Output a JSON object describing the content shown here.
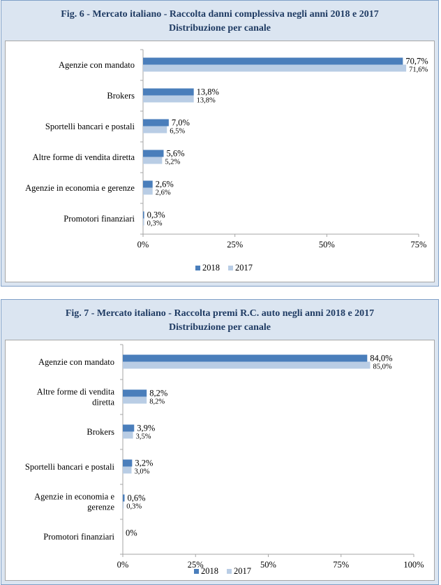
{
  "chart_data": [
    {
      "type": "bar",
      "orientation": "horizontal",
      "title": "Fig. 6 - Mercato italiano - Raccolta danni complessiva negli anni 2018 e 2017",
      "subtitle": "Distribuzione per canale",
      "categories": [
        "Agenzie con mandato",
        "Brokers",
        "Sportelli bancari e postali",
        "Altre forme di vendita diretta",
        "Agenzie in economia e gerenze",
        "Promotori finanziari"
      ],
      "series": [
        {
          "name": "2018",
          "color": "#4a7ebb",
          "values": [
            70.7,
            13.8,
            7.0,
            5.6,
            2.6,
            0.3
          ],
          "labels": [
            "70,7%",
            "13,8%",
            "7,0%",
            "5,6%",
            "2,6%",
            "0,3%"
          ]
        },
        {
          "name": "2017",
          "color": "#b9cde5",
          "values": [
            71.6,
            13.8,
            6.5,
            5.2,
            2.6,
            0.3
          ],
          "labels": [
            "71,6%",
            "13,8%",
            "6,5%",
            "5,2%",
            "2,6%",
            "0,3%"
          ]
        }
      ],
      "xlim": [
        0,
        75
      ],
      "xticks": [
        0,
        25,
        50,
        75
      ],
      "xtick_labels": [
        "0%",
        "25%",
        "50%",
        "75%"
      ],
      "legend": "bottom"
    },
    {
      "type": "bar",
      "orientation": "horizontal",
      "title": "Fig. 7 - Mercato italiano - Raccolta premi R.C. auto negli anni 2018 e 2017",
      "subtitle": "Distribuzione per canale",
      "categories": [
        [
          "Agenzie con mandato"
        ],
        [
          "Altre forme di vendita",
          "diretta"
        ],
        [
          "Brokers"
        ],
        [
          "Sportelli bancari e postali"
        ],
        [
          "Agenzie in economia e",
          "gerenze"
        ],
        [
          "Promotori finanziari"
        ]
      ],
      "series": [
        {
          "name": "2018",
          "color": "#4a7ebb",
          "values": [
            84.0,
            8.2,
            3.9,
            3.2,
            0.6,
            0
          ],
          "labels": [
            "84,0%",
            "8,2%",
            "3,9%",
            "3,2%",
            "0,6%",
            "0%"
          ]
        },
        {
          "name": "2017",
          "color": "#b9cde5",
          "values": [
            85.0,
            8.2,
            3.5,
            3.0,
            0.3,
            0
          ],
          "labels": [
            "85,0%",
            "8,2%",
            "3,5%",
            "3,0%",
            "0,3%",
            ""
          ]
        }
      ],
      "xlim": [
        0,
        100
      ],
      "xticks": [
        0,
        25,
        50,
        75,
        100
      ],
      "xtick_labels": [
        "0%",
        "25%",
        "50%",
        "75%",
        "100%"
      ],
      "legend": "bottom"
    }
  ]
}
